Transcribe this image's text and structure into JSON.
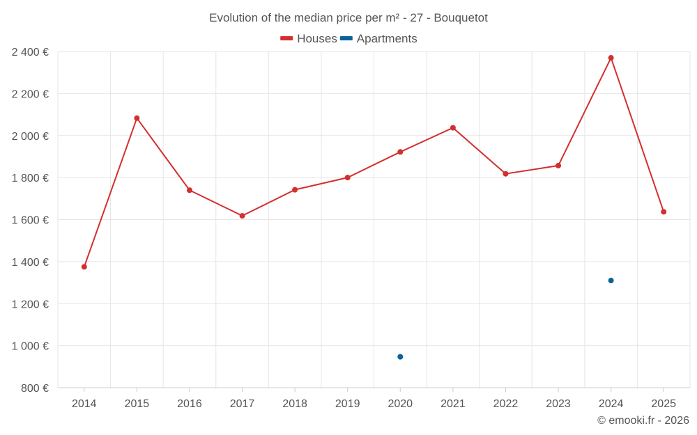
{
  "chart_data": {
    "type": "line",
    "title": "Evolution of the median price per m² - 27 - Bouquetot",
    "categories": [
      "2014",
      "2015",
      "2016",
      "2017",
      "2018",
      "2019",
      "2020",
      "2021",
      "2022",
      "2023",
      "2024",
      "2025"
    ],
    "series": [
      {
        "name": "Houses",
        "color": "#d32f2f",
        "values": [
          1375,
          2083,
          1740,
          1618,
          1742,
          1800,
          1922,
          2037,
          1818,
          1857,
          2370,
          1637
        ]
      },
      {
        "name": "Apartments",
        "color": "#0a6199",
        "values": [
          null,
          null,
          null,
          null,
          null,
          null,
          947,
          null,
          null,
          null,
          1310,
          null
        ]
      }
    ],
    "ylim": [
      800,
      2400
    ],
    "yticks": [
      800,
      1000,
      1200,
      1400,
      1600,
      1800,
      2000,
      2200,
      2400
    ],
    "ytick_labels": [
      "800 €",
      "1 000 €",
      "1 200 €",
      "1 400 €",
      "1 600 €",
      "1 800 €",
      "2 000 €",
      "2 200 €",
      "2 400 €"
    ],
    "xlabel": "",
    "ylabel": "",
    "grid": true,
    "legend_position": "top-center"
  },
  "credit": "© emooki.fr - 2026"
}
